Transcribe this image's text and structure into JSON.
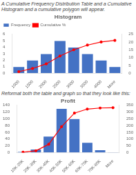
{
  "chart_data": [
    {
      "type": "bar",
      "title": "Histogram",
      "annotations": [
        "A Cumulative Frequency Distribution Table and a Cumulative Histogram and a cumulative polygon will appear."
      ],
      "categories": [
        "1000",
        "1500",
        "2000",
        "2500",
        "3000",
        "3500",
        "4000",
        "More"
      ],
      "series": [
        {
          "name": "Frequency",
          "type": "bar",
          "color": "#4472C4",
          "values": [
            1,
            2,
            3,
            5,
            4,
            3,
            2,
            1
          ]
        },
        {
          "name": "Cumulative %",
          "type": "line",
          "axis": "y2",
          "color": "#FF0000",
          "marker": "o",
          "values": [
            1,
            3,
            6,
            11,
            15,
            18,
            20,
            21
          ]
        }
      ],
      "ylim": [
        0,
        6
      ],
      "yticks": [
        0,
        1,
        2,
        3,
        4,
        5,
        6
      ],
      "y2lim": [
        0,
        25
      ],
      "y2ticks": [
        0,
        5,
        10,
        15,
        20,
        25
      ],
      "grid": false,
      "legend": "upper left"
    },
    {
      "type": "bar",
      "title": "Profit",
      "annotations": [
        "Reformat both the table and graph so that they look like this:"
      ],
      "categories": [
        "10K-20K",
        "20K-30K",
        "30K-40K",
        "40K-50K",
        "50K-60K",
        "60K-70K",
        "70K-80K",
        "More"
      ],
      "series": [
        {
          "type": "bar",
          "color": "#4472C4",
          "values": [
            3,
            10,
            48,
            130,
            100,
            30,
            8,
            2
          ]
        },
        {
          "type": "line",
          "axis": "y2",
          "color": "#FF0000",
          "marker": "o",
          "values": [
            3,
            13,
            61,
            191,
            291,
            321,
            329,
            331
          ]
        }
      ],
      "ylim": [
        0,
        140
      ],
      "yticks": [
        0,
        20,
        40,
        60,
        80,
        100,
        120,
        140
      ],
      "y2lim": [
        0,
        350
      ],
      "y2ticks": [
        0,
        50,
        100,
        150,
        200,
        250,
        300,
        350
      ],
      "grid": false
    }
  ]
}
